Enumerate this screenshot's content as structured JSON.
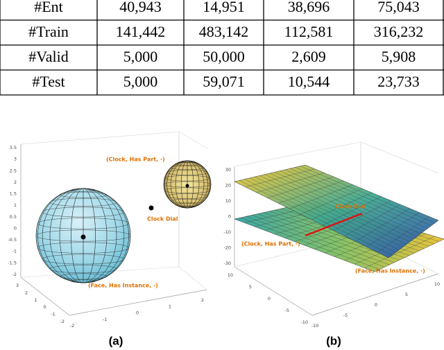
{
  "table": {
    "rows": [
      [
        "#Ent",
        "40,943",
        "14,951",
        "38,696",
        "75,043"
      ],
      [
        "#Train",
        "141,442",
        "483,142",
        "112,581",
        "316,232"
      ],
      [
        "#Valid",
        "5,000",
        "50,000",
        "2,609",
        "5,908"
      ],
      [
        "#Test",
        "5,000",
        "59,071",
        "10,544",
        "23,733"
      ]
    ]
  },
  "figure_a": {
    "caption": "(a)",
    "annotations": [
      "(Clock, Has Part, ·)",
      "Clock Dial",
      "(Face, Has Instance, ·)"
    ],
    "z_tick_labels": [
      "3.5",
      "3",
      "2.5",
      "2",
      "1.5",
      "1",
      "0.5",
      "0",
      "-0.5",
      "-1",
      "-1.5",
      "-2"
    ],
    "x_tick_labels": [
      "3",
      "2",
      "1",
      "0",
      "-1",
      "-2"
    ],
    "y_tick_labels": [
      "-2",
      "-1",
      "0",
      "1",
      "2"
    ]
  },
  "figure_b": {
    "caption": "(b)",
    "annotations": [
      "Clock Dial",
      "(Clock, Has Part, ·)",
      "(Face, Has Instance, ·)"
    ],
    "z_tick_labels": [
      "30",
      "20",
      "10",
      "0",
      "-10",
      "-20",
      "-30"
    ],
    "x_tick_labels": [
      "10",
      "5",
      "0",
      "-5",
      "-10"
    ],
    "y_tick_labels": [
      "-10",
      "-5",
      "0",
      "5",
      "10"
    ]
  }
}
